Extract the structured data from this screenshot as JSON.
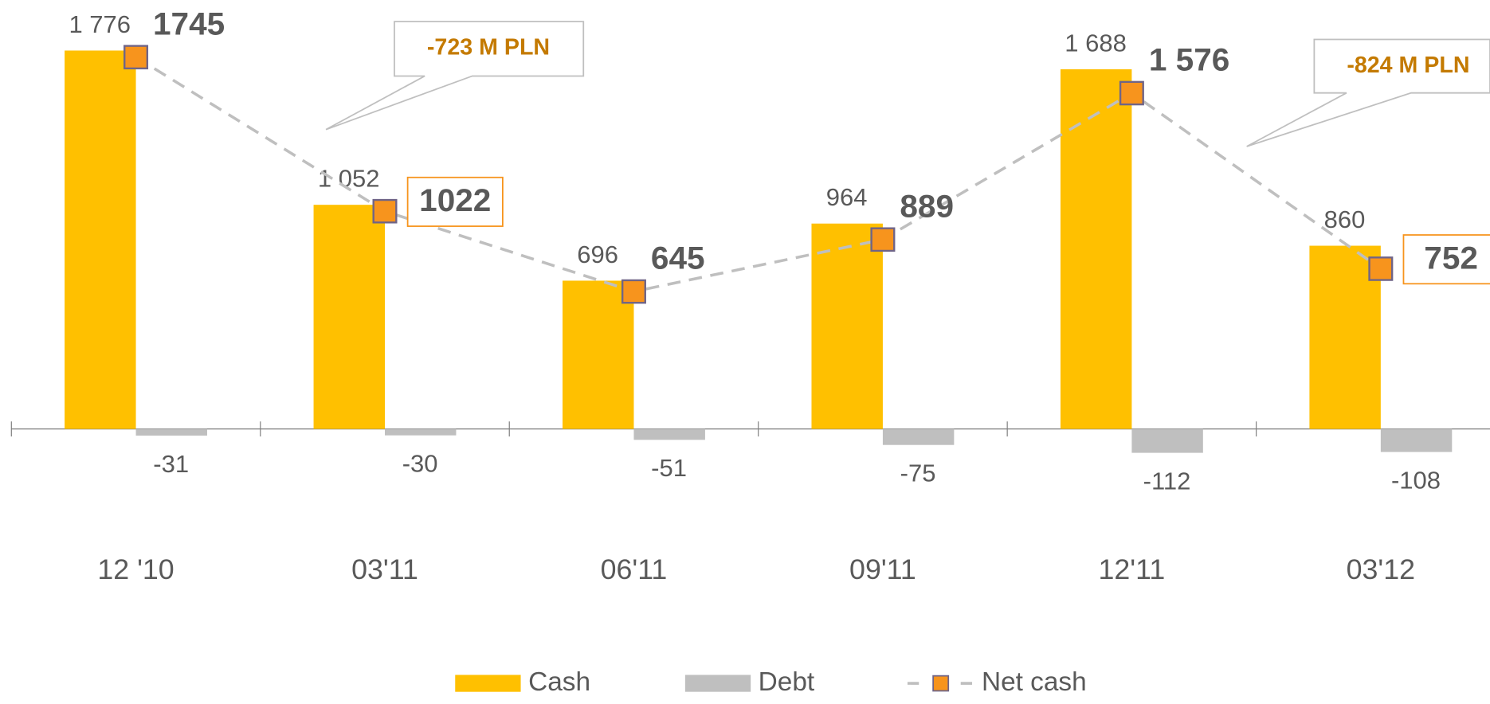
{
  "chart_data": {
    "type": "bar",
    "categories": [
      "12 '10",
      "03'11",
      "06'11",
      "09'11",
      "12'11",
      "03'12"
    ],
    "series": [
      {
        "name": "Cash",
        "color": "#FFC000",
        "values": [
          1776,
          1052,
          696,
          964,
          1688,
          860
        ],
        "value_labels": [
          "1 776",
          "1 052",
          "696",
          "964",
          "1 688",
          "860"
        ]
      },
      {
        "name": "Debt",
        "color": "#BFBFBF",
        "values": [
          -31,
          -30,
          -51,
          -75,
          -112,
          -108
        ]
      },
      {
        "name": "Net cash",
        "type": "line",
        "color": "#F7941D",
        "line_color": "#BFBFBF",
        "values": [
          1745,
          1022,
          645,
          889,
          1576,
          752
        ],
        "value_labels": [
          "1745",
          "1022",
          "645",
          "889",
          "1 576",
          "752"
        ],
        "boxed": [
          false,
          true,
          false,
          false,
          false,
          true
        ]
      }
    ],
    "annotations": [
      "-723 M PLN",
      "-824 M PLN"
    ],
    "legend": "bottom"
  }
}
